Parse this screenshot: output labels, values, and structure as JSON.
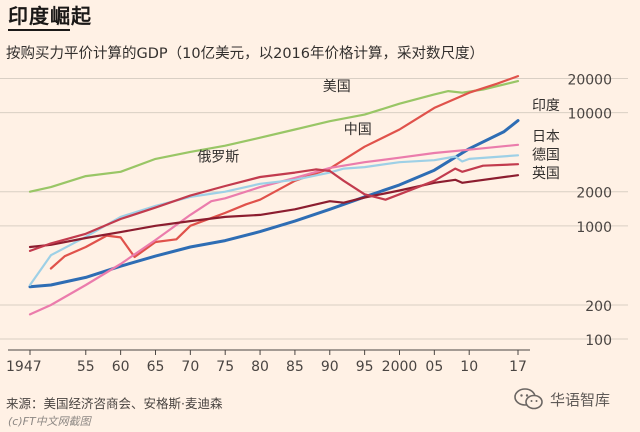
{
  "header": {
    "title": "印度崛起",
    "subtitle": "按购买力平价计算的GDP（10亿美元，以2016年价格计算，采对数尺度）"
  },
  "footer": {
    "source": "来源：美国经济咨商会、安格斯·麦迪森",
    "credit": "(c)FT中文网截图",
    "brand": "华语智库"
  },
  "chart_data": {
    "type": "line",
    "yscale": "log",
    "ylim": [
      80,
      28000
    ],
    "xlim": [
      1947,
      2017
    ],
    "x_ticks": [
      {
        "v": 1947,
        "label": "1947"
      },
      {
        "v": 1955,
        "label": "55"
      },
      {
        "v": 1960,
        "label": "60"
      },
      {
        "v": 1965,
        "label": "65"
      },
      {
        "v": 1970,
        "label": "70"
      },
      {
        "v": 1975,
        "label": "75"
      },
      {
        "v": 1980,
        "label": "80"
      },
      {
        "v": 1985,
        "label": "85"
      },
      {
        "v": 1990,
        "label": "90"
      },
      {
        "v": 1995,
        "label": "95"
      },
      {
        "v": 2000,
        "label": "2000"
      },
      {
        "v": 2005,
        "label": "05"
      },
      {
        "v": 2010,
        "label": "10"
      },
      {
        "v": 2017,
        "label": "17"
      }
    ],
    "y_ticks": [
      {
        "v": 100,
        "label": "100"
      },
      {
        "v": 200,
        "label": "200"
      },
      {
        "v": 1000,
        "label": "1000"
      },
      {
        "v": 2000,
        "label": "2000"
      },
      {
        "v": 10000,
        "label": "10000"
      },
      {
        "v": 20000,
        "label": "20000"
      }
    ],
    "series": [
      {
        "name": "美国",
        "color": "#99c666",
        "x": [
          1947,
          1950,
          1955,
          1960,
          1965,
          1970,
          1975,
          1980,
          1985,
          1990,
          1995,
          2000,
          2005,
          2007,
          2009,
          2012,
          2017
        ],
        "values": [
          2000,
          2200,
          2750,
          3000,
          3900,
          4500,
          5100,
          6000,
          7100,
          8400,
          9600,
          12000,
          14500,
          15500,
          15000,
          16000,
          19000
        ]
      },
      {
        "name": "中国",
        "color": "#e0524b",
        "x": [
          1950,
          1952,
          1955,
          1958,
          1960,
          1962,
          1965,
          1968,
          1970,
          1975,
          1978,
          1980,
          1985,
          1990,
          1995,
          2000,
          2005,
          2010,
          2014,
          2017
        ],
        "values": [
          420,
          540,
          650,
          820,
          790,
          530,
          720,
          760,
          1000,
          1300,
          1550,
          1700,
          2500,
          3200,
          5000,
          7100,
          11000,
          15000,
          18000,
          21000
        ]
      },
      {
        "name": "印度",
        "color": "#2e6db4",
        "x": [
          1947,
          1950,
          1955,
          1960,
          1965,
          1970,
          1975,
          1980,
          1985,
          1990,
          1995,
          2000,
          2005,
          2010,
          2015,
          2017
        ],
        "values": [
          290,
          300,
          350,
          440,
          540,
          650,
          740,
          890,
          1100,
          1400,
          1800,
          2300,
          3100,
          4800,
          6800,
          8500
        ]
      },
      {
        "name": "日本",
        "color": "#eb7cac",
        "x": [
          1947,
          1950,
          1955,
          1960,
          1965,
          1970,
          1973,
          1975,
          1980,
          1985,
          1990,
          1995,
          2000,
          2005,
          2010,
          2017
        ],
        "values": [
          165,
          200,
          300,
          460,
          750,
          1250,
          1650,
          1750,
          2200,
          2650,
          3250,
          3650,
          4000,
          4400,
          4700,
          5200
        ]
      },
      {
        "name": "德国",
        "color": "#9ed0e6",
        "x": [
          1947,
          1950,
          1955,
          1960,
          1965,
          1970,
          1975,
          1980,
          1985,
          1990,
          1992,
          1995,
          2000,
          2005,
          2008,
          2009,
          2010,
          2017
        ],
        "values": [
          300,
          550,
          800,
          1200,
          1500,
          1800,
          2000,
          2350,
          2550,
          2950,
          3200,
          3300,
          3650,
          3800,
          4100,
          3700,
          3900,
          4200
        ]
      },
      {
        "name": "英国",
        "color": "#8c1d2f",
        "x": [
          1947,
          1950,
          1955,
          1960,
          1965,
          1970,
          1975,
          1980,
          1985,
          1990,
          1992,
          1995,
          2000,
          2005,
          2008,
          2009,
          2010,
          2017
        ],
        "values": [
          650,
          680,
          780,
          880,
          1000,
          1100,
          1200,
          1250,
          1400,
          1650,
          1600,
          1780,
          2050,
          2400,
          2550,
          2400,
          2450,
          2800
        ]
      },
      {
        "name": "俄罗斯",
        "color": "#c23b4e",
        "x": [
          1947,
          1950,
          1955,
          1960,
          1965,
          1970,
          1975,
          1980,
          1985,
          1988,
          1990,
          1992,
          1995,
          1998,
          2000,
          2005,
          2008,
          2009,
          2012,
          2017
        ],
        "values": [
          600,
          700,
          850,
          1150,
          1450,
          1850,
          2250,
          2700,
          2950,
          3150,
          3050,
          2500,
          1900,
          1700,
          1900,
          2500,
          3200,
          3000,
          3400,
          3500
        ]
      }
    ],
    "labels": [
      {
        "text": "美国",
        "x": 1989,
        "y": 15500,
        "color": "#33302e"
      },
      {
        "text": "中国",
        "x": 1992,
        "y": 6500,
        "color": "#33302e"
      },
      {
        "text": "俄罗斯",
        "x": 1971,
        "y": 3700,
        "color": "#33302e"
      },
      {
        "text": "印度",
        "x": 2019,
        "y": 10500,
        "color": "#33302e"
      },
      {
        "text": "日本",
        "x": 2019,
        "y": 5600,
        "color": "#33302e"
      },
      {
        "text": "德国",
        "x": 2019,
        "y": 3850,
        "color": "#33302e"
      },
      {
        "text": "英国",
        "x": 2019,
        "y": 2650,
        "color": "#33302e"
      }
    ]
  }
}
